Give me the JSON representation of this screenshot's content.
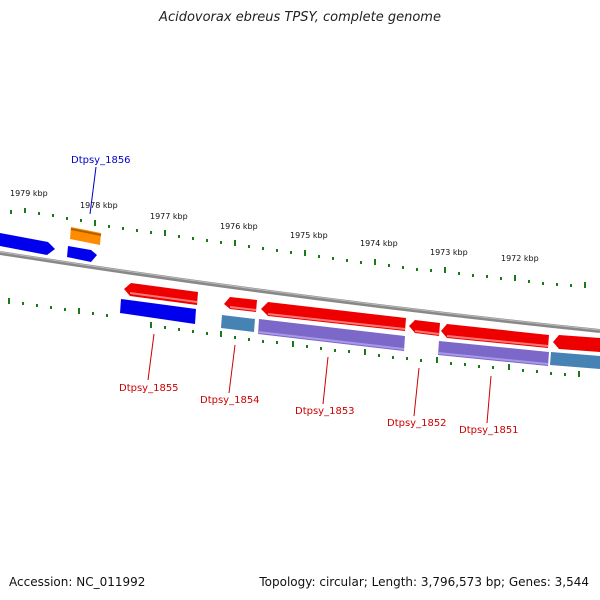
{
  "title": "Acidovorax ebreus TPSY, complete genome",
  "footer": {
    "accession": "Accession: NC_011992",
    "summary": "Topology: circular; Length: 3,796,573 bp; Genes: 3,544"
  },
  "ticks": [
    "1979 kbp",
    "1978 kbp",
    "1977 kbp",
    "1976 kbp",
    "1975 kbp",
    "1974 kbp",
    "1973 kbp",
    "1972 kbp"
  ],
  "gene_labels": [
    {
      "text": "Dtpsy_1856",
      "color": "#0000cc"
    },
    {
      "text": "Dtpsy_1855",
      "color": "#cc0000"
    },
    {
      "text": "Dtpsy_1854",
      "color": "#cc0000"
    },
    {
      "text": "Dtpsy_1853",
      "color": "#cc0000"
    },
    {
      "text": "Dtpsy_1852",
      "color": "#cc0000"
    },
    {
      "text": "Dtpsy_1851",
      "color": "#cc0000"
    }
  ],
  "colors": {
    "forward_gene": "#0000ee",
    "reverse_gene": "#ee0000",
    "rna_gene": "#ff8c00",
    "cds_product": "#7b68c8",
    "steelblue_product": "#4682b4",
    "backbone": "#888888",
    "tick": "#1a7a1a"
  }
}
